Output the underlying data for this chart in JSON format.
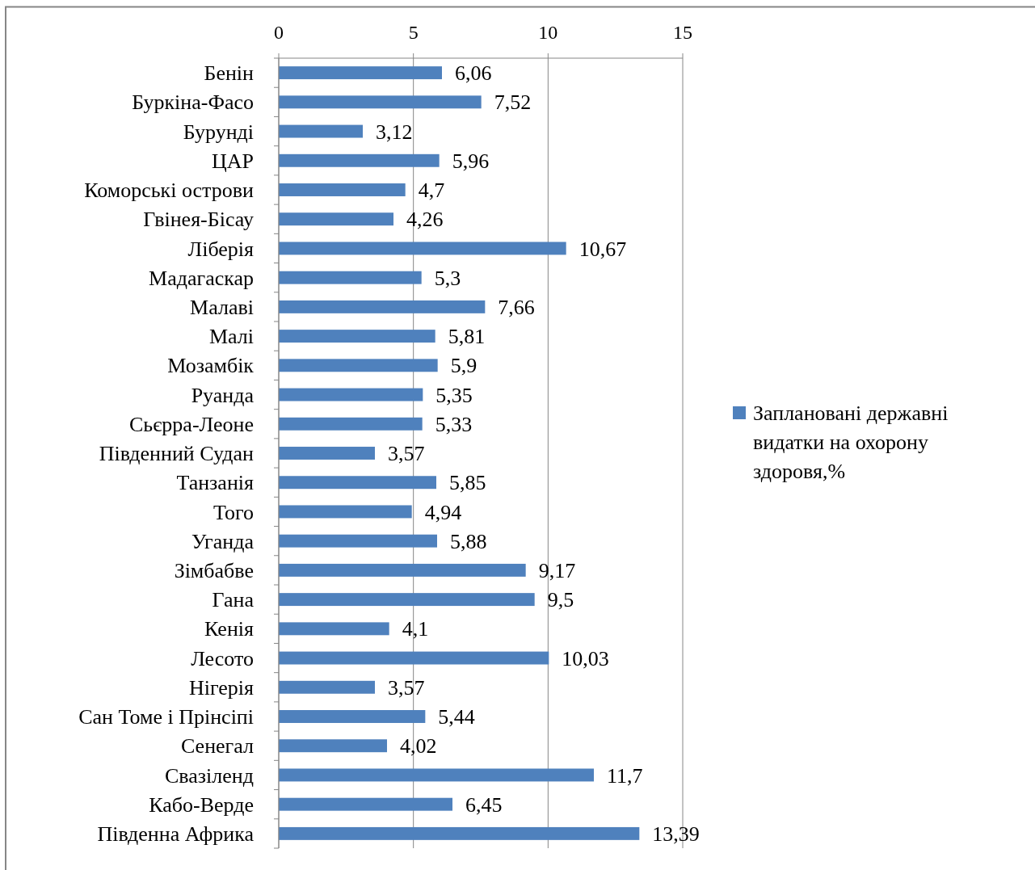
{
  "chart_data": {
    "type": "bar",
    "orientation": "horizontal",
    "categories": [
      "Бенін",
      "Буркіна-Фасо",
      "Бурунді",
      "ЦАР",
      "Коморські острови",
      "Гвінея-Бісау",
      "Ліберія",
      "Мадагаскар",
      "Малаві",
      "Малі",
      "Мозамбік",
      "Руанда",
      "Сьєрра-Леоне",
      "Південний Судан",
      "Танзанія",
      "Того",
      "Уганда",
      "Зімбабве",
      "Гана",
      "Кенія",
      "Лесото",
      "Нігерія",
      "Сан Томе і Прінсіпі",
      "Сенегал",
      "Свазіленд",
      "Кабо-Верде",
      "Південна Африка"
    ],
    "series": [
      {
        "name": "Заплановані державні видатки на охорону здоровя,%",
        "color": "#4f81bd",
        "values": [
          6.06,
          7.52,
          3.12,
          5.96,
          4.7,
          4.26,
          10.67,
          5.3,
          7.66,
          5.81,
          5.9,
          5.35,
          5.33,
          3.57,
          5.85,
          4.94,
          5.88,
          9.17,
          9.5,
          4.1,
          10.03,
          3.57,
          5.44,
          4.02,
          11.7,
          6.45,
          13.39
        ],
        "value_labels": [
          "6,06",
          "7,52",
          "3,12",
          "5,96",
          "4,7",
          "4,26",
          "10,67",
          "5,3",
          "7,66",
          "5,81",
          "5,9",
          "5,35",
          "5,33",
          "3,57",
          "5,85",
          "4,94",
          "5,88",
          "9,17",
          "9,5",
          "4,1",
          "10,03",
          "3,57",
          "5,44",
          "4,02",
          "11,7",
          "6,45",
          "13,39"
        ]
      }
    ],
    "xlim": [
      0,
      15
    ],
    "xticks": [
      0,
      5,
      10,
      15
    ],
    "grid": "x",
    "legend": "right"
  }
}
